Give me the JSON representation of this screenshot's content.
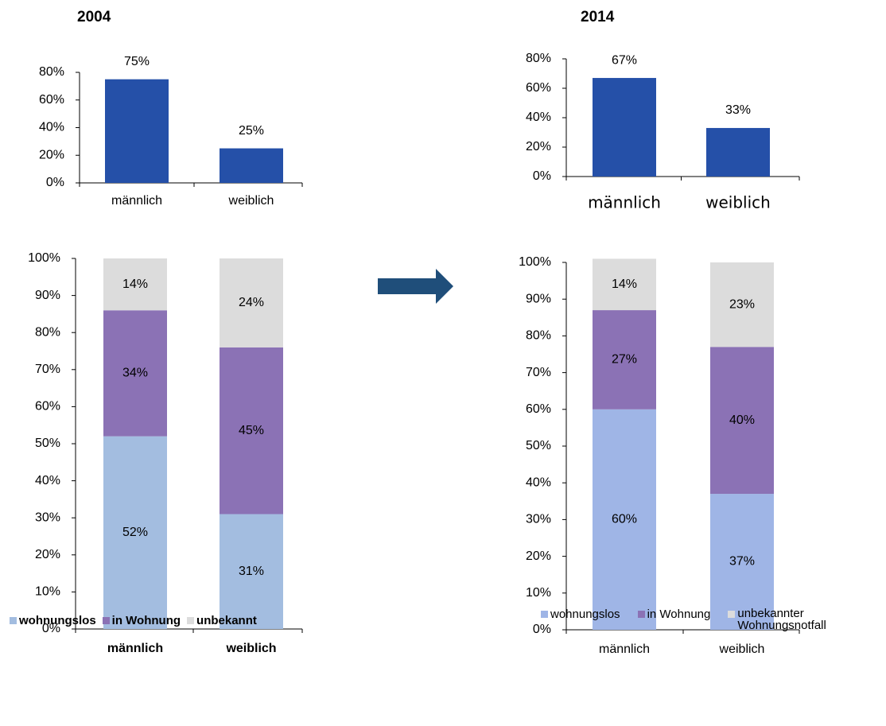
{
  "chart_data": [
    {
      "type": "bar",
      "title": "2004",
      "categories": [
        "männlich",
        "weiblich"
      ],
      "values": [
        75,
        25
      ],
      "value_labels": [
        "75%",
        "25%"
      ],
      "color": "#2550a8",
      "ylim": [
        0,
        80
      ],
      "yticks": [
        {
          "value": 0,
          "label": "0%"
        },
        {
          "value": 20,
          "label": "20%"
        },
        {
          "value": 40,
          "label": "40%"
        },
        {
          "value": 60,
          "label": "60%"
        },
        {
          "value": 80,
          "label": "80%"
        }
      ]
    },
    {
      "type": "bar",
      "title": "2014",
      "categories": [
        "männlich",
        "weiblich"
      ],
      "values": [
        67,
        33
      ],
      "value_labels": [
        "67%",
        "33%"
      ],
      "color": "#2550a8",
      "ylim": [
        0,
        80
      ],
      "yticks": [
        {
          "value": 0,
          "label": "0%"
        },
        {
          "value": 20,
          "label": "20%"
        },
        {
          "value": 40,
          "label": "40%"
        },
        {
          "value": 60,
          "label": "60%"
        },
        {
          "value": 80,
          "label": "80%"
        }
      ]
    },
    {
      "type": "stacked_bar",
      "categories": [
        "männlich",
        "weiblich"
      ],
      "legend": "bottom-left",
      "series": [
        {
          "name": "wohnungslos",
          "color": "#a3bde0",
          "values": [
            52,
            31
          ],
          "value_labels": [
            "52%",
            "31%"
          ]
        },
        {
          "name": "in Wohnung",
          "color": "#8b72b5",
          "values": [
            34,
            45
          ],
          "value_labels": [
            "34%",
            "45%"
          ]
        },
        {
          "name": "unbekannt",
          "color": "#dcdcdc",
          "values": [
            14,
            24
          ],
          "value_labels": [
            "14%",
            "24%"
          ]
        }
      ],
      "ylim": [
        0,
        100
      ],
      "yticks": [
        {
          "value": 0,
          "label": "0%"
        },
        {
          "value": 10,
          "label": "10%"
        },
        {
          "value": 20,
          "label": "20%"
        },
        {
          "value": 30,
          "label": "30%"
        },
        {
          "value": 40,
          "label": "40%"
        },
        {
          "value": 50,
          "label": "50%"
        },
        {
          "value": 60,
          "label": "60%"
        },
        {
          "value": 70,
          "label": "70%"
        },
        {
          "value": 80,
          "label": "80%"
        },
        {
          "value": 90,
          "label": "90%"
        },
        {
          "value": 100,
          "label": "100%"
        }
      ]
    },
    {
      "type": "stacked_bar",
      "categories": [
        "männlich",
        "weiblich"
      ],
      "legend": "bottom-right",
      "series": [
        {
          "name": "wohnungslos",
          "color": "#9fb5e6",
          "values": [
            60,
            37
          ],
          "value_labels": [
            "60%",
            "37%"
          ]
        },
        {
          "name": "in Wohnung",
          "color": "#8b72b5",
          "values": [
            27,
            40
          ],
          "value_labels": [
            "27%",
            "40%"
          ]
        },
        {
          "name": "unbekannter Wohnungsnotfall",
          "color": "#dcdcdc",
          "values": [
            14,
            23
          ],
          "value_labels": [
            "14%",
            "23%"
          ]
        }
      ],
      "ylim": [
        0,
        100
      ],
      "yticks": [
        {
          "value": 0,
          "label": "0%"
        },
        {
          "value": 10,
          "label": "10%"
        },
        {
          "value": 20,
          "label": "20%"
        },
        {
          "value": 30,
          "label": "30%"
        },
        {
          "value": 40,
          "label": "40%"
        },
        {
          "value": 50,
          "label": "50%"
        },
        {
          "value": 60,
          "label": "60%"
        },
        {
          "value": 70,
          "label": "70%"
        },
        {
          "value": 80,
          "label": "80%"
        },
        {
          "value": 90,
          "label": "90%"
        },
        {
          "value": 100,
          "label": "100%"
        }
      ]
    }
  ]
}
